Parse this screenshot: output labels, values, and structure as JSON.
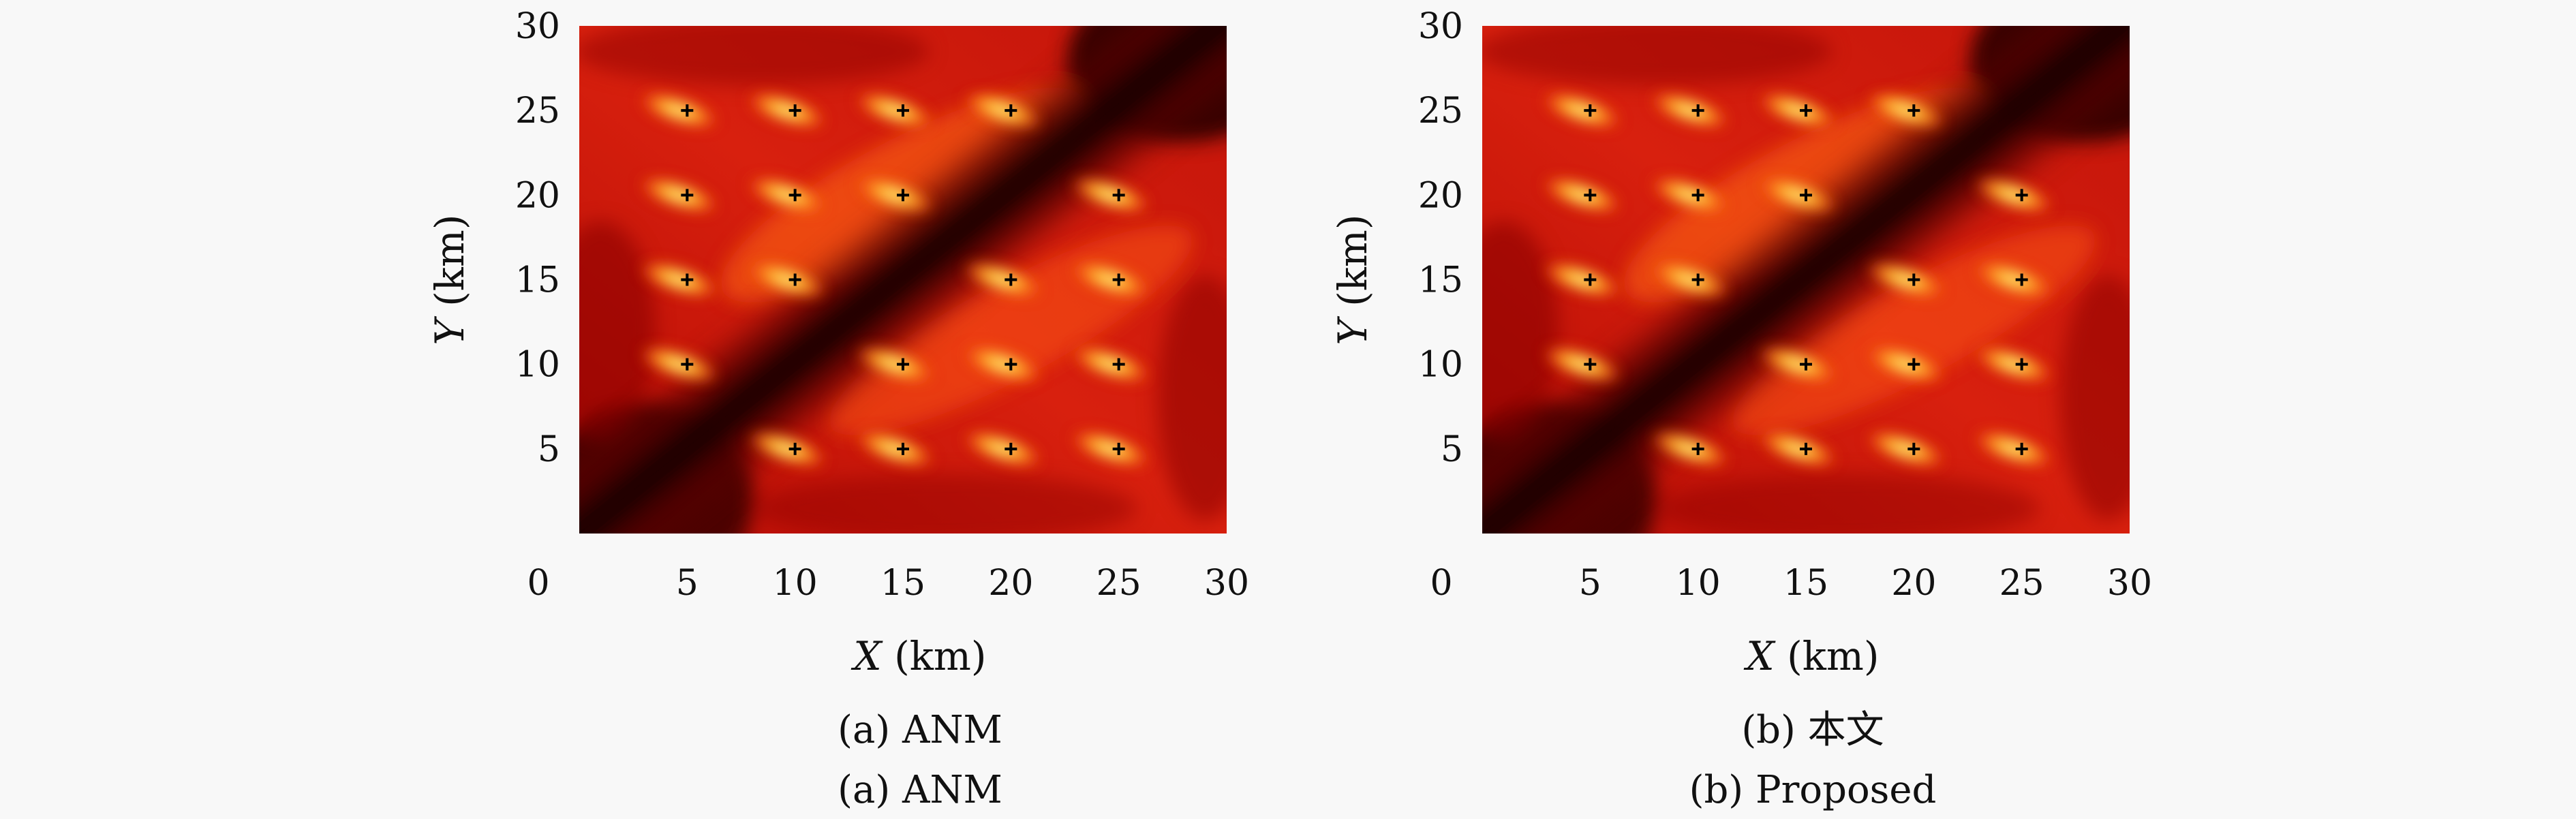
{
  "chart_data": [
    {
      "type": "heatmap",
      "panel": "a",
      "caption_zh": "(a) ANM",
      "caption_en": "(a) ANM",
      "xlabel_var": "X",
      "xlabel_unit": "(km)",
      "ylabel_var": "Y",
      "ylabel_unit": "(km)",
      "xlim": [
        0,
        30
      ],
      "ylim": [
        0,
        30
      ],
      "xticks": [
        "0",
        "5",
        "10",
        "15",
        "20",
        "25",
        "30"
      ],
      "yticks": [
        "5",
        "10",
        "15",
        "20",
        "25",
        "30"
      ],
      "colormap": "hot",
      "targets": [
        [
          5,
          25
        ],
        [
          10,
          25
        ],
        [
          15,
          25
        ],
        [
          20,
          25
        ],
        [
          5,
          20
        ],
        [
          10,
          20
        ],
        [
          15,
          20
        ],
        [
          25,
          20
        ],
        [
          5,
          15
        ],
        [
          10,
          15
        ],
        [
          20,
          15
        ],
        [
          25,
          15
        ],
        [
          5,
          10
        ],
        [
          15,
          10
        ],
        [
          20,
          10
        ],
        [
          25,
          10
        ],
        [
          10,
          5
        ],
        [
          15,
          5
        ],
        [
          20,
          5
        ],
        [
          25,
          5
        ]
      ]
    },
    {
      "type": "heatmap",
      "panel": "b",
      "caption_zh": "(b) 本文",
      "caption_en": "(b) Proposed",
      "xlabel_var": "X",
      "xlabel_unit": "(km)",
      "ylabel_var": "Y",
      "ylabel_unit": "(km)",
      "xlim": [
        0,
        30
      ],
      "ylim": [
        0,
        30
      ],
      "xticks": [
        "0",
        "5",
        "10",
        "15",
        "20",
        "25",
        "30"
      ],
      "yticks": [
        "5",
        "10",
        "15",
        "20",
        "25",
        "30"
      ],
      "colormap": "hot",
      "targets": [
        [
          5,
          25
        ],
        [
          10,
          25
        ],
        [
          15,
          25
        ],
        [
          20,
          25
        ],
        [
          5,
          20
        ],
        [
          10,
          20
        ],
        [
          15,
          20
        ],
        [
          25,
          20
        ],
        [
          5,
          15
        ],
        [
          10,
          15
        ],
        [
          20,
          15
        ],
        [
          25,
          15
        ],
        [
          5,
          10
        ],
        [
          15,
          10
        ],
        [
          20,
          10
        ],
        [
          25,
          10
        ],
        [
          10,
          5
        ],
        [
          15,
          5
        ],
        [
          20,
          5
        ],
        [
          25,
          5
        ]
      ]
    }
  ],
  "colors": {
    "background": "#f8f8f8",
    "field": "#c8160c",
    "dark_band": "#1a0000",
    "hot_spot": "#ffe24a",
    "marker": "#000000"
  }
}
